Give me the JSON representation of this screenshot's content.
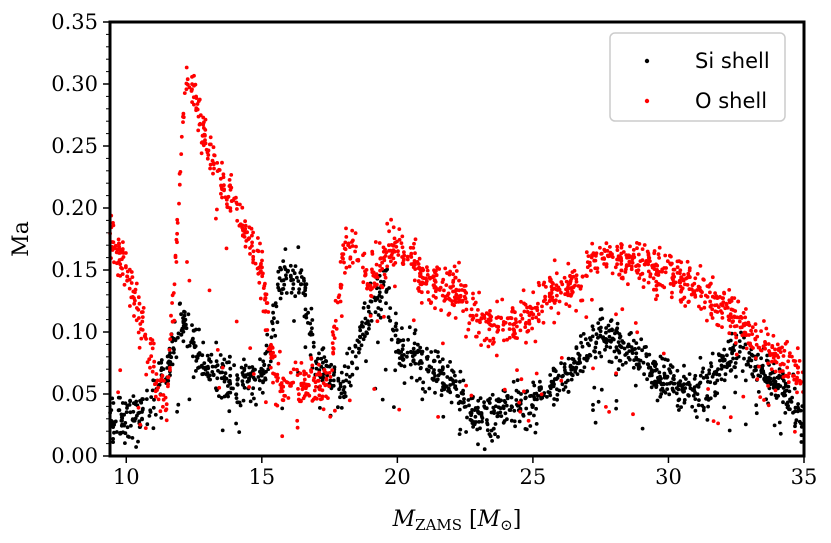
{
  "chart_data": {
    "type": "scatter",
    "xlabel": "M_ZAMS [M_⊙]",
    "xlabel_main": "M",
    "xlabel_sub": "ZAMS",
    "xlabel_unit_open": " [",
    "xlabel_unit_main": "M",
    "xlabel_unit_sub": "⊙",
    "xlabel_unit_close": "]",
    "ylabel": "Ma",
    "xlim": [
      9.4,
      35
    ],
    "ylim": [
      0,
      0.35
    ],
    "xticks": [
      10,
      15,
      20,
      25,
      30,
      35
    ],
    "xtick_labels": [
      "10",
      "15",
      "20",
      "25",
      "30",
      "35"
    ],
    "yticks": [
      0.0,
      0.05,
      0.1,
      0.15,
      0.2,
      0.25,
      0.3,
      0.35
    ],
    "ytick_labels": [
      "0.00",
      "0.05",
      "0.10",
      "0.15",
      "0.20",
      "0.25",
      "0.30",
      "0.35"
    ],
    "grid": false,
    "legend_position": "top-right",
    "series": [
      {
        "name": "Si shell",
        "color": "#000000",
        "trend": [
          [
            9.4,
            0.03
          ],
          [
            10.5,
            0.035
          ],
          [
            11.5,
            0.07
          ],
          [
            12.0,
            0.11
          ],
          [
            12.5,
            0.09
          ],
          [
            13.0,
            0.07
          ],
          [
            14.0,
            0.06
          ],
          [
            15.0,
            0.06
          ],
          [
            15.8,
            0.15
          ],
          [
            16.5,
            0.14
          ],
          [
            17.0,
            0.08
          ],
          [
            18.0,
            0.05
          ],
          [
            19.0,
            0.12
          ],
          [
            19.5,
            0.14
          ],
          [
            20.0,
            0.09
          ],
          [
            21.0,
            0.075
          ],
          [
            22.0,
            0.06
          ],
          [
            23.0,
            0.03
          ],
          [
            24.0,
            0.04
          ],
          [
            25.0,
            0.045
          ],
          [
            26.0,
            0.06
          ],
          [
            27.5,
            0.1
          ],
          [
            29.0,
            0.08
          ],
          [
            30.5,
            0.05
          ],
          [
            31.5,
            0.06
          ],
          [
            32.5,
            0.085
          ],
          [
            34.0,
            0.06
          ],
          [
            35.0,
            0.03
          ]
        ]
      },
      {
        "name": "O shell",
        "color": "#ff0000",
        "trend": [
          [
            9.4,
            0.18
          ],
          [
            10.0,
            0.15
          ],
          [
            11.5,
            0.04
          ],
          [
            12.2,
            0.31
          ],
          [
            13.0,
            0.25
          ],
          [
            14.0,
            0.2
          ],
          [
            15.0,
            0.15
          ],
          [
            15.5,
            0.06
          ],
          [
            16.5,
            0.06
          ],
          [
            17.5,
            0.06
          ],
          [
            18.0,
            0.16
          ],
          [
            18.5,
            0.175
          ],
          [
            19.0,
            0.14
          ],
          [
            19.8,
            0.17
          ],
          [
            20.5,
            0.16
          ],
          [
            21.0,
            0.14
          ],
          [
            22.5,
            0.13
          ],
          [
            23.2,
            0.105
          ],
          [
            24.5,
            0.105
          ],
          [
            25.5,
            0.13
          ],
          [
            26.5,
            0.14
          ],
          [
            27.5,
            0.165
          ],
          [
            29.0,
            0.155
          ],
          [
            30.5,
            0.14
          ],
          [
            32.0,
            0.12
          ],
          [
            33.5,
            0.09
          ],
          [
            35.0,
            0.065
          ]
        ]
      }
    ]
  }
}
